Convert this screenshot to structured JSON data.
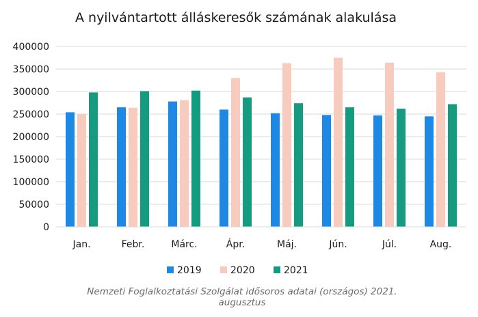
{
  "chart_data": {
    "type": "bar",
    "title": "A nyilvántartott álláskeresők számának alakulása",
    "xlabel": "",
    "ylabel": "",
    "categories": [
      "Jan.",
      "Febr.",
      "Márc.",
      "Ápr.",
      "Máj.",
      "Jún.",
      "Júl.",
      "Aug."
    ],
    "series": [
      {
        "name": "2019",
        "color": "#1e88e5",
        "values": [
          254000,
          265000,
          278000,
          260000,
          252000,
          248000,
          247000,
          245000
        ]
      },
      {
        "name": "2020",
        "color": "#f8cbbf",
        "values": [
          250000,
          264000,
          281000,
          330000,
          363000,
          375000,
          364000,
          343000
        ]
      },
      {
        "name": "2021",
        "color": "#159b7f",
        "values": [
          298000,
          301000,
          302000,
          287000,
          274000,
          265000,
          262000,
          272000
        ]
      }
    ],
    "ylim": [
      0,
      400000
    ],
    "yticks": [
      "0",
      "50000",
      "100000",
      "150000",
      "200000",
      "250000",
      "300000",
      "350000",
      "400000"
    ],
    "grid": true,
    "legend_position": "bottom",
    "source_line1": "Nemzeti Foglalkoztatási Szolgálat idősoros adatai (országos) 2021.",
    "source_line2": "augusztus"
  }
}
